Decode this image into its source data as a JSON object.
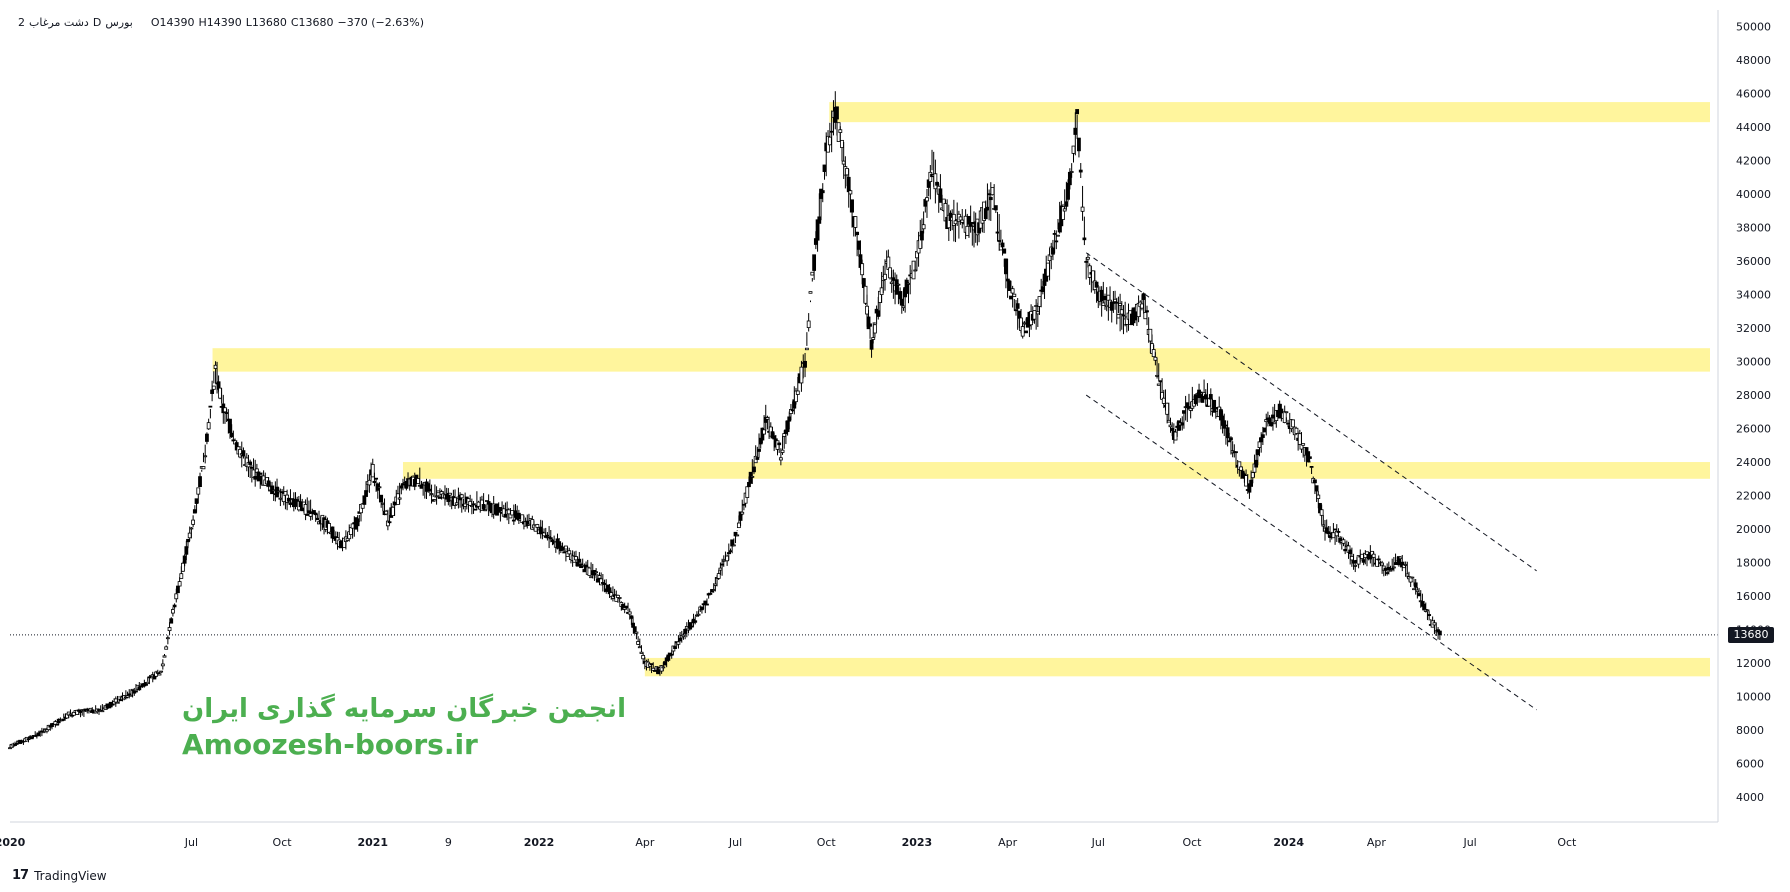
{
  "header": {
    "symbol": "دشت مرغاب",
    "exchange": "بورس",
    "timeframe": "2",
    "interval": "D",
    "open": "O14390",
    "high": "H14390",
    "low": "L13680",
    "close": "C13680",
    "change": "−370 (−2.63%)"
  },
  "watermark": {
    "line1": "انجمن خبرگان سرمایه گذاری ایران",
    "line2": "Amoozesh-boors.ir"
  },
  "footer": {
    "brand": "TradingView",
    "brand_mark": "17"
  },
  "last_price": "13680",
  "colors": {
    "zone": "#fff59d",
    "candle": "#000000",
    "watermark": "#4caf50",
    "badge": "#131722"
  },
  "chart_data": {
    "type": "line",
    "title": "",
    "xlabel": "",
    "ylabel": "",
    "ylim": [
      2500,
      51000
    ],
    "xlim": [
      0,
      56.5
    ],
    "x_unit": "months since Jan 2020",
    "y_ticks": [
      4000,
      6000,
      8000,
      10000,
      12000,
      14000,
      16000,
      18000,
      20000,
      22000,
      24000,
      26000,
      28000,
      30000,
      32000,
      34000,
      36000,
      38000,
      40000,
      42000,
      44000,
      46000,
      48000,
      50000
    ],
    "x_ticks": [
      {
        "label": "2020",
        "m": 0
      },
      {
        "label": "Jul",
        "m": 6
      },
      {
        "label": "Oct",
        "m": 9
      },
      {
        "label": "2021",
        "m": 12
      },
      {
        "label": "9",
        "m": 14.5
      },
      {
        "label": "2022",
        "m": 17.5
      },
      {
        "label": "Apr",
        "m": 21
      },
      {
        "label": "Jul",
        "m": 24
      },
      {
        "label": "Oct",
        "m": 27
      },
      {
        "label": "2023",
        "m": 30
      },
      {
        "label": "Apr",
        "m": 33
      },
      {
        "label": "Jul",
        "m": 36
      },
      {
        "label": "Oct",
        "m": 39.1
      },
      {
        "label": "2024",
        "m": 42.3
      },
      {
        "label": "Apr",
        "m": 45.2
      },
      {
        "label": "Jul",
        "m": 48.3
      },
      {
        "label": "Oct",
        "m": 51.5
      }
    ],
    "series": [
      {
        "kind": "price",
        "points": [
          [
            0.0,
            7000
          ],
          [
            1.0,
            7800
          ],
          [
            2.0,
            9000
          ],
          [
            3.0,
            9200
          ],
          [
            4.0,
            10200
          ],
          [
            5.0,
            11500
          ],
          [
            5.5,
            16000
          ],
          [
            6.0,
            20000
          ],
          [
            6.4,
            24000
          ],
          [
            6.8,
            29500
          ],
          [
            7.0,
            27500
          ],
          [
            7.5,
            25000
          ],
          [
            8.0,
            23500
          ],
          [
            9.0,
            22000
          ],
          [
            10.0,
            21000
          ],
          [
            10.5,
            20200
          ],
          [
            11.0,
            19000
          ],
          [
            11.5,
            20500
          ],
          [
            12.0,
            23500
          ],
          [
            12.5,
            20500
          ],
          [
            13.0,
            22500
          ],
          [
            13.5,
            23000
          ],
          [
            14.0,
            22000
          ],
          [
            15.5,
            21500
          ],
          [
            16.5,
            21000
          ],
          [
            17.5,
            20000
          ],
          [
            18.5,
            18500
          ],
          [
            19.5,
            17000
          ],
          [
            20.5,
            15000
          ],
          [
            21.0,
            12000
          ],
          [
            21.5,
            11500
          ],
          [
            22.0,
            13000
          ],
          [
            23.0,
            15500
          ],
          [
            24.0,
            19500
          ],
          [
            24.5,
            23000
          ],
          [
            25.0,
            26500
          ],
          [
            25.5,
            24500
          ],
          [
            26.0,
            28000
          ],
          [
            26.3,
            30000
          ],
          [
            26.6,
            36000
          ],
          [
            27.0,
            42500
          ],
          [
            27.3,
            45000
          ],
          [
            27.8,
            40000
          ],
          [
            28.3,
            34000
          ],
          [
            28.5,
            31000
          ],
          [
            29.0,
            36000
          ],
          [
            29.5,
            33500
          ],
          [
            30.0,
            36000
          ],
          [
            30.5,
            41500
          ],
          [
            31.0,
            38500
          ],
          [
            32.0,
            38000
          ],
          [
            32.5,
            40000
          ],
          [
            33.0,
            35000
          ],
          [
            33.5,
            32000
          ],
          [
            34.0,
            33000
          ],
          [
            34.5,
            37000
          ],
          [
            35.0,
            40000
          ],
          [
            35.3,
            44500
          ],
          [
            35.6,
            36000
          ],
          [
            36.0,
            34000
          ],
          [
            37.0,
            32500
          ],
          [
            37.5,
            33500
          ],
          [
            38.0,
            29000
          ],
          [
            38.5,
            25500
          ],
          [
            39.0,
            27500
          ],
          [
            39.5,
            28000
          ],
          [
            40.0,
            27000
          ],
          [
            40.5,
            24500
          ],
          [
            41.0,
            22500
          ],
          [
            41.5,
            26000
          ],
          [
            42.0,
            27000
          ],
          [
            42.5,
            26000
          ],
          [
            43.0,
            24000
          ],
          [
            43.5,
            20000
          ],
          [
            44.0,
            19500
          ],
          [
            44.5,
            18000
          ],
          [
            45.0,
            18500
          ],
          [
            45.5,
            17500
          ],
          [
            46.0,
            18200
          ],
          [
            46.5,
            16500
          ],
          [
            47.0,
            14500
          ],
          [
            47.3,
            13680
          ]
        ]
      }
    ],
    "zones": [
      {
        "from": 44300,
        "to": 45500,
        "x_start": 27.1
      },
      {
        "from": 29400,
        "to": 30800,
        "x_start": 6.7
      },
      {
        "from": 23000,
        "to": 24000,
        "x_start": 13.0
      },
      {
        "from": 11200,
        "to": 12300,
        "x_start": 21.0
      }
    ],
    "channel": [
      {
        "x1": 35.6,
        "y1": 36500,
        "x2": 50.5,
        "y2": 17500
      },
      {
        "x1": 35.6,
        "y1": 28000,
        "x2": 50.5,
        "y2": 9200
      }
    ],
    "last_price_line": 13680,
    "grid": false,
    "legend": "none"
  }
}
